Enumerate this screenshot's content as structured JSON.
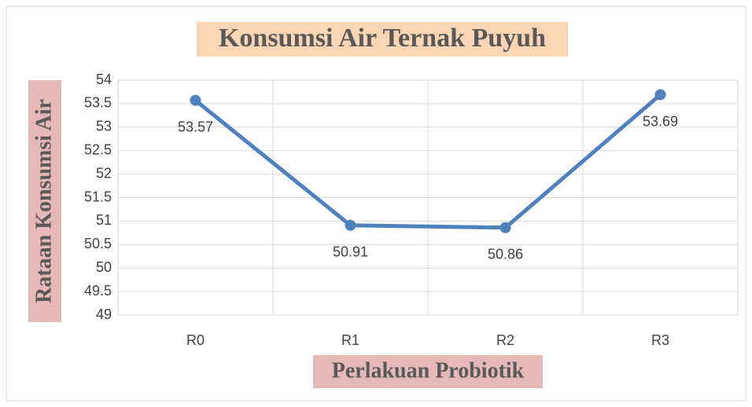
{
  "chart_data": {
    "type": "line",
    "title": "Konsumsi Air Ternak Puyuh",
    "x_label": "Perlakuan Probiotik",
    "y_label": "Rataan Konsumsi Air",
    "categories": [
      "R0",
      "R1",
      "R2",
      "R3"
    ],
    "series": [
      {
        "name": "Rataan Konsumsi Air",
        "color": "#4f81bd",
        "values": [
          53.57,
          50.91,
          50.86,
          53.69
        ]
      }
    ],
    "ylim": [
      49,
      54
    ],
    "yticks": [
      49,
      49.5,
      50,
      50.5,
      51,
      51.5,
      52,
      52.5,
      53,
      53.5,
      54
    ],
    "grid": true
  }
}
